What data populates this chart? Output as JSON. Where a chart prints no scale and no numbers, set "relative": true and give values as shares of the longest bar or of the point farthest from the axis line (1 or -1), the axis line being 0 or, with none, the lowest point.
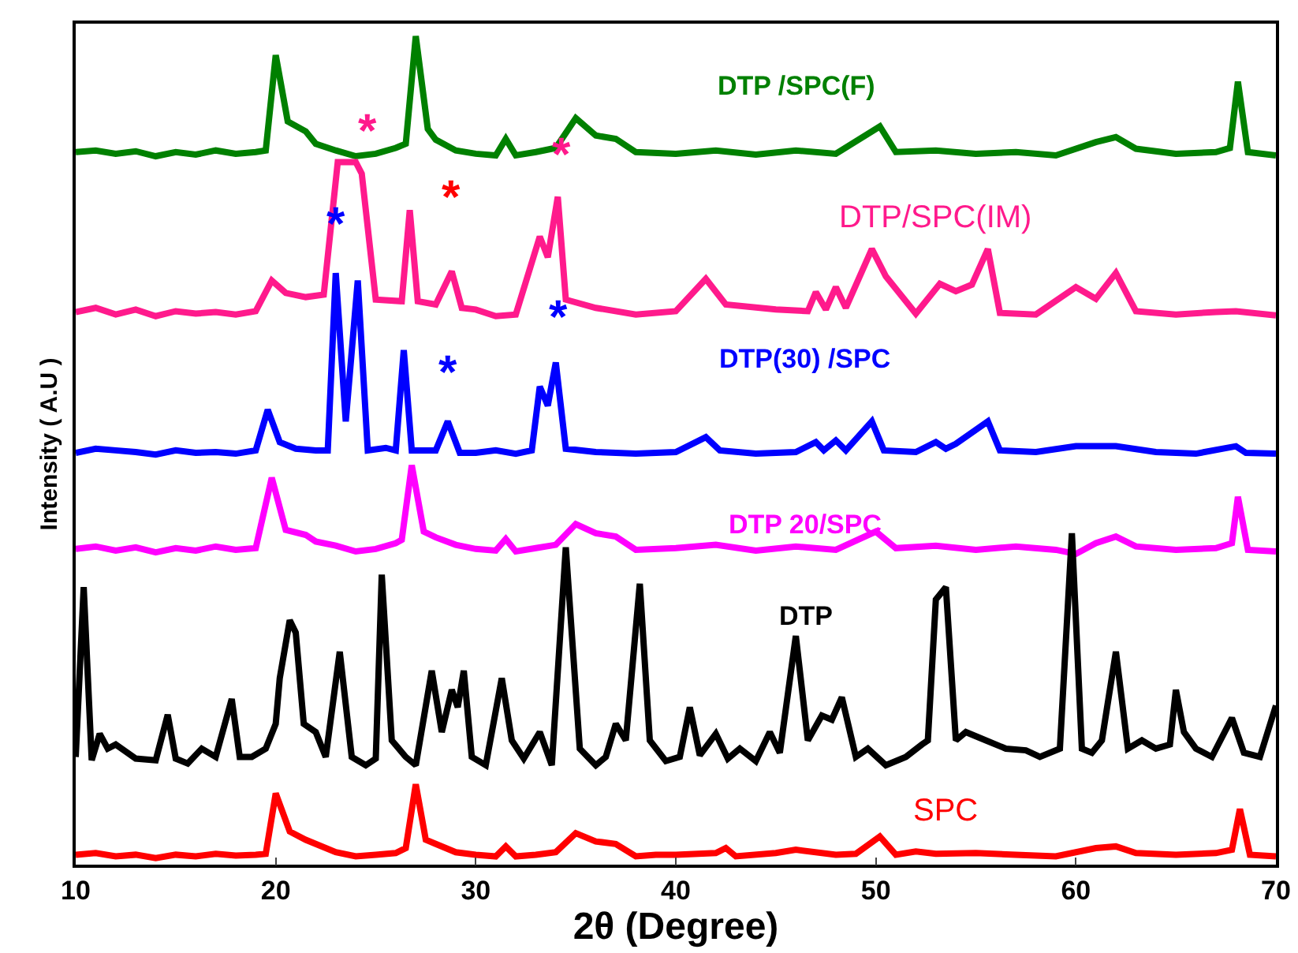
{
  "chart_data": {
    "type": "line",
    "relative": true,
    "xlabel": "2θ (Degree)",
    "ylabel": "Intensity ( A.U )",
    "xlim": [
      10,
      70
    ],
    "xticks": [
      10,
      20,
      30,
      40,
      50,
      60,
      70
    ],
    "legend": false,
    "grid": false,
    "marker": "none",
    "line_style": "solid",
    "series": [
      {
        "name": "DTP /SPC(F)",
        "color": "#008000",
        "x": [
          10,
          11,
          12,
          13,
          14,
          15,
          16,
          17,
          18,
          19,
          19.5,
          20,
          20.6,
          21.5,
          22,
          23,
          24,
          25,
          26,
          26.5,
          27,
          27.6,
          28,
          29,
          30,
          31,
          31.5,
          32,
          33,
          34,
          35,
          36,
          37,
          38,
          40,
          42,
          44,
          46,
          48,
          50.2,
          51,
          53,
          55,
          57,
          59,
          61,
          62,
          63,
          65,
          67,
          67.7,
          68.1,
          68.6,
          70
        ],
        "values": [
          0.86,
          0.862,
          0.858,
          0.861,
          0.855,
          0.86,
          0.857,
          0.862,
          0.858,
          0.86,
          0.862,
          0.977,
          0.897,
          0.885,
          0.87,
          0.862,
          0.855,
          0.858,
          0.865,
          0.87,
          1,
          0.888,
          0.875,
          0.862,
          0.858,
          0.856,
          0.876,
          0.856,
          0.86,
          0.865,
          0.901,
          0.88,
          0.876,
          0.86,
          0.858,
          0.862,
          0.857,
          0.862,
          0.858,
          0.891,
          0.86,
          0.862,
          0.858,
          0.86,
          0.856,
          0.872,
          0.878,
          0.864,
          0.858,
          0.86,
          0.865,
          0.945,
          0.86,
          0.856
        ]
      },
      {
        "name": "DTP/SPC(IM)",
        "color": "#ff1a8c",
        "x": [
          10,
          11,
          12,
          13,
          14,
          15,
          16,
          17,
          18,
          19,
          19.8,
          20.5,
          21.5,
          22.4,
          23.1,
          24,
          24.3,
          25,
          26.3,
          26.7,
          27.1,
          28,
          28.8,
          29.3,
          30,
          31,
          32,
          33.2,
          33.6,
          34.1,
          34.5,
          36,
          38,
          40,
          41.5,
          42.5,
          45,
          46.6,
          47,
          47.5,
          48,
          48.5,
          49.8,
          50.5,
          52,
          53.2,
          54,
          54.8,
          55.6,
          56.2,
          58,
          60,
          61,
          62,
          63,
          65,
          67,
          68,
          70
        ],
        "values": [
          0.667,
          0.672,
          0.664,
          0.67,
          0.662,
          0.668,
          0.665,
          0.667,
          0.664,
          0.668,
          0.705,
          0.69,
          0.685,
          0.688,
          0.848,
          0.848,
          0.834,
          0.682,
          0.68,
          0.79,
          0.68,
          0.676,
          0.716,
          0.672,
          0.67,
          0.662,
          0.664,
          0.758,
          0.733,
          0.806,
          0.682,
          0.672,
          0.664,
          0.668,
          0.707,
          0.676,
          0.67,
          0.668,
          0.691,
          0.67,
          0.697,
          0.672,
          0.743,
          0.71,
          0.665,
          0.701,
          0.692,
          0.7,
          0.743,
          0.666,
          0.664,
          0.697,
          0.683,
          0.714,
          0.668,
          0.664,
          0.667,
          0.668,
          0.663
        ]
      },
      {
        "name": "DTP(30) /SPC",
        "color": "#0000ff",
        "x": [
          10,
          11,
          12,
          13,
          14,
          15,
          16,
          17,
          18,
          19,
          19.6,
          20.2,
          21,
          22,
          22.6,
          23,
          23.5,
          24.1,
          24.6,
          25.5,
          26,
          26.4,
          26.8,
          28,
          28.6,
          29.2,
          30,
          31,
          32,
          32.8,
          33.2,
          33.6,
          34,
          34.5,
          36,
          38,
          40,
          41.5,
          42.2,
          44,
          46,
          47,
          47.4,
          48,
          48.5,
          49.8,
          50.4,
          52,
          53,
          53.5,
          54,
          55.6,
          56.2,
          58,
          60,
          62,
          64,
          66,
          68,
          68.5,
          70
        ],
        "values": [
          0.497,
          0.502,
          0.5,
          0.498,
          0.495,
          0.5,
          0.497,
          0.498,
          0.496,
          0.5,
          0.549,
          0.51,
          0.502,
          0.5,
          0.5,
          0.714,
          0.535,
          0.705,
          0.5,
          0.503,
          0.5,
          0.621,
          0.5,
          0.5,
          0.535,
          0.497,
          0.497,
          0.5,
          0.496,
          0.5,
          0.577,
          0.554,
          0.606,
          0.502,
          0.498,
          0.496,
          0.498,
          0.516,
          0.5,
          0.496,
          0.498,
          0.51,
          0.5,
          0.512,
          0.5,
          0.535,
          0.5,
          0.498,
          0.51,
          0.502,
          0.508,
          0.535,
          0.5,
          0.498,
          0.505,
          0.505,
          0.498,
          0.496,
          0.505,
          0.497,
          0.496
        ]
      },
      {
        "name": "DTP 20/SPC",
        "color": "#ff00ff",
        "x": [
          10,
          11,
          12,
          13,
          14,
          15,
          16,
          17,
          18,
          19,
          19.8,
          20.5,
          21.5,
          22,
          23,
          24,
          25,
          26,
          26.3,
          26.8,
          27.4,
          28,
          29,
          30,
          31,
          31.5,
          32,
          33,
          34,
          35,
          36,
          37,
          38,
          40,
          42,
          44,
          46,
          48,
          50,
          51,
          53,
          55,
          57,
          59,
          60,
          61,
          62,
          63,
          65,
          67,
          67.8,
          68.1,
          68.6,
          70
        ],
        "values": [
          0.381,
          0.384,
          0.379,
          0.383,
          0.377,
          0.382,
          0.379,
          0.384,
          0.38,
          0.382,
          0.467,
          0.404,
          0.398,
          0.39,
          0.385,
          0.378,
          0.381,
          0.388,
          0.392,
          0.482,
          0.402,
          0.395,
          0.386,
          0.381,
          0.379,
          0.393,
          0.378,
          0.382,
          0.386,
          0.411,
          0.4,
          0.396,
          0.38,
          0.382,
          0.386,
          0.379,
          0.384,
          0.38,
          0.402,
          0.382,
          0.385,
          0.38,
          0.384,
          0.38,
          0.375,
          0.388,
          0.396,
          0.384,
          0.38,
          0.382,
          0.388,
          0.444,
          0.38,
          0.378
        ]
      },
      {
        "name": "DTP",
        "color": "#000000",
        "x": [
          10,
          10.4,
          10.8,
          11.2,
          11.6,
          12,
          13,
          14,
          14.6,
          15,
          15.6,
          16.3,
          17,
          17.8,
          18.2,
          18.8,
          19.5,
          20,
          20.2,
          20.7,
          21,
          21.4,
          22,
          22.5,
          23.2,
          23.8,
          24.5,
          25,
          25.3,
          25.8,
          26.5,
          27,
          27.8,
          28.3,
          28.8,
          29.1,
          29.4,
          29.8,
          30.5,
          31.3,
          31.8,
          32.4,
          33.2,
          33.8,
          34.5,
          35.2,
          36,
          36.5,
          37,
          37.5,
          38.2,
          38.7,
          39.5,
          40.2,
          40.7,
          41.2,
          42,
          42.6,
          43.2,
          44,
          44.7,
          45.2,
          46,
          46.6,
          47.3,
          47.8,
          48.3,
          49,
          49.6,
          50.5,
          51.5,
          52.3,
          52.6,
          53,
          53.5,
          54,
          54.5,
          55.5,
          56.5,
          57.5,
          58.2,
          59.2,
          59.8,
          60.3,
          60.8,
          61.3,
          62,
          62.6,
          63.3,
          64,
          64.7,
          65,
          65.4,
          66,
          66.8,
          67.8,
          68.4,
          69.2,
          70
        ],
        "values": [
          0.13,
          0.335,
          0.126,
          0.158,
          0.14,
          0.145,
          0.128,
          0.126,
          0.181,
          0.128,
          0.122,
          0.14,
          0.13,
          0.2,
          0.13,
          0.13,
          0.14,
          0.17,
          0.225,
          0.295,
          0.28,
          0.17,
          0.16,
          0.13,
          0.257,
          0.13,
          0.12,
          0.128,
          0.35,
          0.15,
          0.13,
          0.12,
          0.234,
          0.16,
          0.211,
          0.19,
          0.234,
          0.13,
          0.12,
          0.225,
          0.15,
          0.128,
          0.16,
          0.12,
          0.383,
          0.14,
          0.12,
          0.13,
          0.17,
          0.15,
          0.339,
          0.15,
          0.125,
          0.13,
          0.19,
          0.132,
          0.158,
          0.128,
          0.14,
          0.125,
          0.16,
          0.135,
          0.276,
          0.15,
          0.18,
          0.175,
          0.202,
          0.13,
          0.14,
          0.12,
          0.13,
          0.145,
          0.15,
          0.32,
          0.335,
          0.15,
          0.16,
          0.15,
          0.14,
          0.138,
          0.13,
          0.14,
          0.4,
          0.14,
          0.135,
          0.15,
          0.257,
          0.14,
          0.15,
          0.14,
          0.145,
          0.211,
          0.16,
          0.14,
          0.13,
          0.177,
          0.135,
          0.13,
          0.192
        ]
      },
      {
        "name": "SPC",
        "color": "#ff0000",
        "x": [
          10,
          11,
          12,
          13,
          14,
          15,
          16,
          17,
          18,
          19,
          19.5,
          20,
          20.7,
          21.5,
          22,
          23,
          24,
          25,
          26,
          26.5,
          27,
          27.5,
          28,
          29,
          30,
          31,
          31.5,
          32,
          33,
          34,
          35,
          36,
          37,
          38,
          39,
          40,
          42,
          42.5,
          43,
          45,
          46,
          48,
          49,
          50.2,
          51,
          52,
          53,
          55,
          57,
          59,
          61,
          62,
          63,
          65,
          67,
          67.8,
          68.2,
          68.7,
          70
        ],
        "values": [
          0.012,
          0.014,
          0.01,
          0.012,
          0.008,
          0.012,
          0.01,
          0.013,
          0.011,
          0.012,
          0.013,
          0.086,
          0.04,
          0.03,
          0.025,
          0.015,
          0.01,
          0.012,
          0.014,
          0.02,
          0.097,
          0.03,
          0.025,
          0.015,
          0.012,
          0.01,
          0.022,
          0.01,
          0.012,
          0.015,
          0.038,
          0.028,
          0.025,
          0.01,
          0.012,
          0.012,
          0.014,
          0.02,
          0.01,
          0.014,
          0.018,
          0.012,
          0.013,
          0.034,
          0.012,
          0.016,
          0.013,
          0.014,
          0.012,
          0.01,
          0.02,
          0.022,
          0.014,
          0.012,
          0.014,
          0.018,
          0.067,
          0.012,
          0.01
        ]
      }
    ],
    "annotations": [
      {
        "text": "*",
        "x": 24.3,
        "y": 0.834
      },
      {
        "text": "*",
        "x": 28.8,
        "y": 0.716
      },
      {
        "text": "*",
        "x": 34.1,
        "y": 0.806
      },
      {
        "text": "*",
        "x": 23,
        "y": 0.714
      },
      {
        "text": "*",
        "x": 28.6,
        "y": 0.535
      },
      {
        "text": "*",
        "x": 34,
        "y": 0.606
      }
    ]
  }
}
